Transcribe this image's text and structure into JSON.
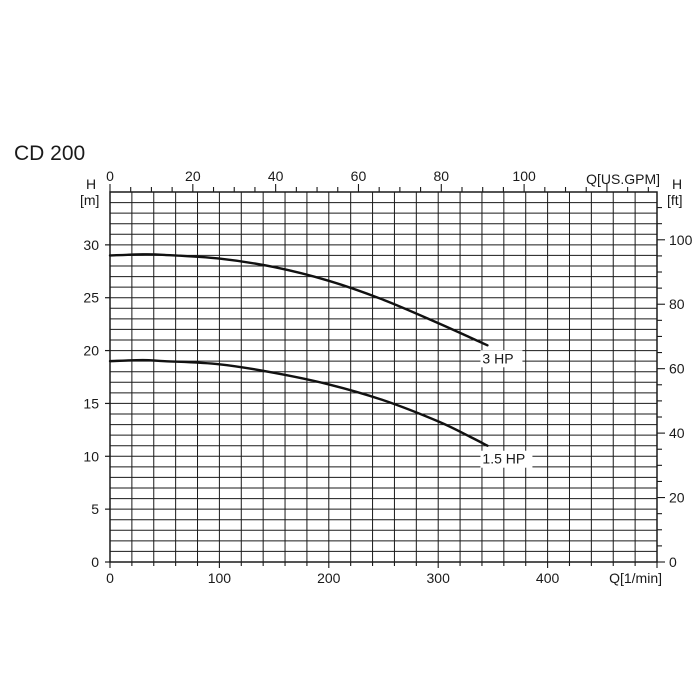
{
  "chart_data": {
    "type": "line",
    "title": "CD 200",
    "grid": true,
    "x_bottom": {
      "label": "Q[1/min]",
      "range": [
        0,
        500
      ],
      "ticks": [
        0,
        100,
        200,
        300,
        400
      ]
    },
    "x_top": {
      "label": "Q[US.GPM]",
      "range": [
        0,
        132.09
      ],
      "ticks": [
        0,
        20,
        40,
        60,
        80,
        100
      ]
    },
    "y_left": {
      "label_top": "H",
      "label_unit": "[m]",
      "range": [
        0,
        35
      ],
      "ticks": [
        0,
        5,
        10,
        15,
        20,
        25,
        30
      ]
    },
    "y_right": {
      "label_top": "H",
      "label_unit": "[ft]",
      "range": [
        0,
        114.83
      ],
      "ticks": [
        0,
        20,
        40,
        60,
        80,
        100
      ]
    },
    "series": [
      {
        "name": "3 HP",
        "x": [
          0,
          30,
          50,
          100,
          150,
          200,
          250,
          300,
          330,
          345
        ],
        "y": [
          29.0,
          29.1,
          29.05,
          28.7,
          27.9,
          26.6,
          24.8,
          22.6,
          21.2,
          20.5
        ]
      },
      {
        "name": "1.5 HP",
        "x": [
          0,
          30,
          50,
          100,
          150,
          200,
          250,
          300,
          330,
          345
        ],
        "y": [
          19.0,
          19.1,
          19.0,
          18.7,
          17.9,
          16.8,
          15.3,
          13.3,
          11.8,
          11.0
        ]
      }
    ]
  }
}
